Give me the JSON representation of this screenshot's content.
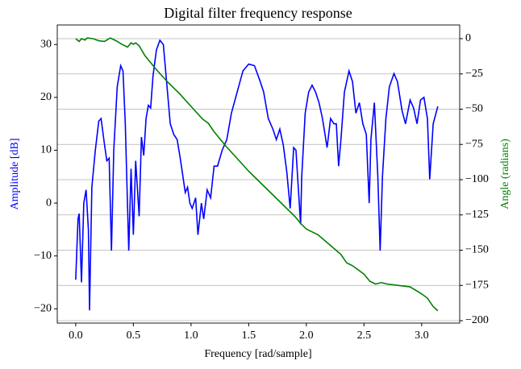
{
  "chart_data": {
    "type": "line",
    "title": "Digital filter frequency response",
    "xlabel": "Frequency [rad/sample]",
    "ylabel": "Amplitude [dB]",
    "y2label": "Angle (radians)",
    "xlim": [
      -0.16,
      3.33
    ],
    "ylim": [
      -22.7,
      33.7
    ],
    "y2lim": [
      -201.7,
      9.7
    ],
    "xticks": [
      {
        "value": 0,
        "label": "0.0"
      },
      {
        "value": 0.5,
        "label": "0.5"
      },
      {
        "value": 1,
        "label": "1.0"
      },
      {
        "value": 1.5,
        "label": "1.5"
      },
      {
        "value": 2,
        "label": "2.0"
      },
      {
        "value": 2.5,
        "label": "2.5"
      },
      {
        "value": 3,
        "label": "3.0"
      }
    ],
    "yticks": [
      {
        "value": -20,
        "label": "−20"
      },
      {
        "value": -10,
        "label": "−10"
      },
      0,
      10,
      20,
      30
    ],
    "y2ticks": [
      0,
      {
        "value": -25,
        "label": "−25"
      },
      {
        "value": -50,
        "label": "−50"
      },
      {
        "value": -75,
        "label": "−75"
      },
      {
        "value": -100,
        "label": "−100"
      },
      {
        "value": -125,
        "label": "−125"
      },
      {
        "value": -150,
        "label": "−150"
      },
      {
        "value": -175,
        "label": "−175"
      },
      {
        "value": -200,
        "label": "−200"
      }
    ],
    "grid": "y2",
    "series": [
      {
        "color": "#0000ff",
        "x": [
          0.0,
          0.02,
          0.03,
          0.05,
          0.07,
          0.09,
          0.11,
          0.12,
          0.14,
          0.17,
          0.2,
          0.22,
          0.25,
          0.27,
          0.29,
          0.31,
          0.33,
          0.36,
          0.39,
          0.41,
          0.43,
          0.46,
          0.48,
          0.5,
          0.52,
          0.55,
          0.57,
          0.59,
          0.61,
          0.63,
          0.65,
          0.67,
          0.7,
          0.73,
          0.76,
          0.78,
          0.82,
          0.85,
          0.88,
          0.91,
          0.95,
          0.97,
          0.99,
          1.01,
          1.04,
          1.06,
          1.09,
          1.11,
          1.14,
          1.17,
          1.2,
          1.23,
          1.27,
          1.31,
          1.35,
          1.4,
          1.45,
          1.5,
          1.55,
          1.6,
          1.63,
          1.67,
          1.71,
          1.74,
          1.77,
          1.8,
          1.83,
          1.86,
          1.89,
          1.91,
          1.93,
          1.95,
          1.96,
          1.99,
          2.02,
          2.05,
          2.08,
          2.11,
          2.14,
          2.18,
          2.21,
          2.24,
          2.26,
          2.28,
          2.3,
          2.33,
          2.37,
          2.4,
          2.43,
          2.46,
          2.49,
          2.52,
          2.545,
          2.56,
          2.59,
          2.62,
          2.64,
          2.66,
          2.69,
          2.72,
          2.76,
          2.79,
          2.83,
          2.86,
          2.9,
          2.93,
          2.96,
          2.99,
          3.02,
          3.05,
          3.07,
          3.1,
          3.14
        ],
        "values": [
          -14.5,
          -3,
          -2,
          -15,
          0,
          2.5,
          -5,
          -20.3,
          3,
          10,
          15.5,
          16,
          11,
          8,
          8.5,
          -9,
          10,
          22,
          26,
          25,
          15,
          -9,
          6.5,
          -6,
          8,
          -2.5,
          12.5,
          9,
          16,
          18.5,
          18,
          24,
          29,
          30.8,
          30,
          25,
          15,
          13,
          12,
          8,
          2,
          3,
          0,
          -1,
          1,
          -6,
          0,
          -3,
          2.5,
          1,
          7,
          7,
          10,
          12,
          17,
          21,
          25,
          26.3,
          26,
          23,
          21,
          16,
          14,
          12,
          14,
          11,
          6,
          -1,
          10.5,
          10,
          3,
          -4,
          5,
          17,
          21,
          22.3,
          21,
          19,
          16,
          10.5,
          16,
          15,
          15,
          7,
          12,
          21,
          25,
          23,
          17,
          19,
          15,
          13,
          0,
          12,
          19,
          5,
          -9,
          5,
          16,
          22,
          24.5,
          23,
          17.5,
          15,
          19.5,
          18,
          15,
          19.5,
          20,
          16,
          4.5,
          15,
          18.3
        ]
      },
      {
        "color": "#008000",
        "axis": "y2",
        "x": [
          0,
          0.03,
          0.05,
          0.08,
          0.1,
          0.15,
          0.2,
          0.25,
          0.3,
          0.35,
          0.4,
          0.45,
          0.48,
          0.5,
          0.52,
          0.55,
          0.6,
          0.7,
          0.8,
          0.9,
          1.0,
          1.1,
          1.15,
          1.2,
          1.3,
          1.4,
          1.5,
          1.6,
          1.7,
          1.8,
          1.9,
          1.95,
          2.0,
          2.1,
          2.2,
          2.3,
          2.35,
          2.4,
          2.5,
          2.55,
          2.6,
          2.65,
          2.7,
          2.8,
          2.9,
          3.0,
          3.05,
          3.1,
          3.14
        ],
        "values": [
          0,
          -2,
          0,
          -1,
          0.5,
          0,
          -1.5,
          -2,
          0.5,
          -1.5,
          -4,
          -6,
          -3,
          -4,
          -3,
          -5,
          -12,
          -22,
          -31,
          -39,
          -48,
          -57,
          -60,
          -66,
          -76,
          -85,
          -94,
          -102,
          -110,
          -118,
          -126,
          -131,
          -135,
          -139,
          -146,
          -153,
          -159,
          -161,
          -167,
          -172,
          -174,
          -173,
          -174,
          -175,
          -176,
          -181,
          -184,
          -190,
          -193
        ]
      }
    ]
  }
}
